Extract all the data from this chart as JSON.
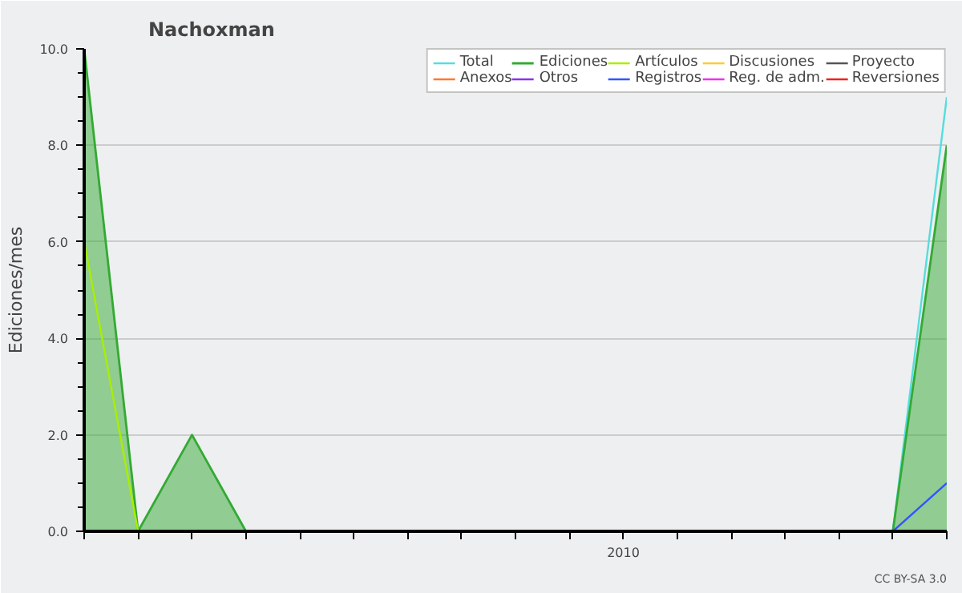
{
  "chart_data": {
    "type": "line",
    "title": "Nachoxman",
    "ylabel": "Ediciones/mes",
    "categories": [
      null,
      null,
      null,
      null,
      null,
      null,
      null,
      null,
      null,
      null,
      "2010",
      null,
      null,
      null,
      null,
      null,
      null
    ],
    "series": [
      {
        "name": "Total",
        "color": "#55dddd",
        "values": [
          null,
          null,
          null,
          null,
          null,
          null,
          null,
          null,
          null,
          null,
          null,
          null,
          null,
          null,
          null,
          0,
          9
        ]
      },
      {
        "name": "Ediciones",
        "color": "#33aa33",
        "type": "area",
        "values": [
          10,
          0,
          2,
          0,
          0,
          0,
          0,
          0,
          0,
          0,
          0,
          0,
          0,
          0,
          0,
          0,
          8
        ]
      },
      {
        "name": "Artículos",
        "color": "#aaee00",
        "values": [
          6,
          0,
          null,
          null,
          null,
          null,
          null,
          null,
          null,
          null,
          null,
          null,
          null,
          null,
          null,
          null,
          null
        ]
      },
      {
        "name": "Discusiones",
        "color": "#ffcc33",
        "values": [
          null,
          null,
          null,
          null,
          null,
          null,
          null,
          null,
          null,
          null,
          null,
          null,
          null,
          null,
          null,
          null,
          null
        ]
      },
      {
        "name": "Proyecto",
        "color": "#555555",
        "values": [
          null,
          null,
          null,
          null,
          null,
          null,
          null,
          null,
          null,
          null,
          null,
          null,
          null,
          null,
          null,
          null,
          null
        ]
      },
      {
        "name": "Anexos",
        "color": "#ff7733",
        "values": [
          null,
          null,
          null,
          null,
          null,
          null,
          null,
          null,
          null,
          null,
          null,
          null,
          null,
          null,
          null,
          null,
          null
        ]
      },
      {
        "name": "Otros",
        "color": "#8833ee",
        "values": [
          null,
          null,
          null,
          null,
          null,
          null,
          null,
          null,
          null,
          null,
          null,
          null,
          null,
          null,
          null,
          null,
          null
        ]
      },
      {
        "name": "Registros",
        "color": "#3355ff",
        "values": [
          null,
          null,
          null,
          null,
          null,
          null,
          null,
          null,
          null,
          null,
          null,
          null,
          null,
          null,
          null,
          0,
          1
        ]
      },
      {
        "name": "Reg. de adm.",
        "color": "#ee33ee",
        "values": [
          null,
          null,
          null,
          null,
          null,
          null,
          null,
          null,
          null,
          null,
          null,
          null,
          null,
          null,
          null,
          null,
          null
        ]
      },
      {
        "name": "Reversiones",
        "color": "#ee2222",
        "values": [
          null,
          null,
          null,
          null,
          null,
          null,
          null,
          null,
          null,
          null,
          null,
          null,
          null,
          null,
          null,
          null,
          null
        ]
      }
    ],
    "ylim": [
      0,
      10
    ],
    "yticks": [
      {
        "value": 0,
        "label": "0.0"
      },
      {
        "value": 2,
        "label": "2.0"
      },
      {
        "value": 4,
        "label": "4.0"
      },
      {
        "value": 6,
        "label": "6.0"
      },
      {
        "value": 8,
        "label": "8.0"
      },
      {
        "value": 10,
        "label": "10.0"
      }
    ],
    "grid": "y",
    "legend": "top right",
    "marker": "none",
    "line_style": "solid",
    "annotations": [
      "CC BY-SA 3.0"
    ]
  }
}
